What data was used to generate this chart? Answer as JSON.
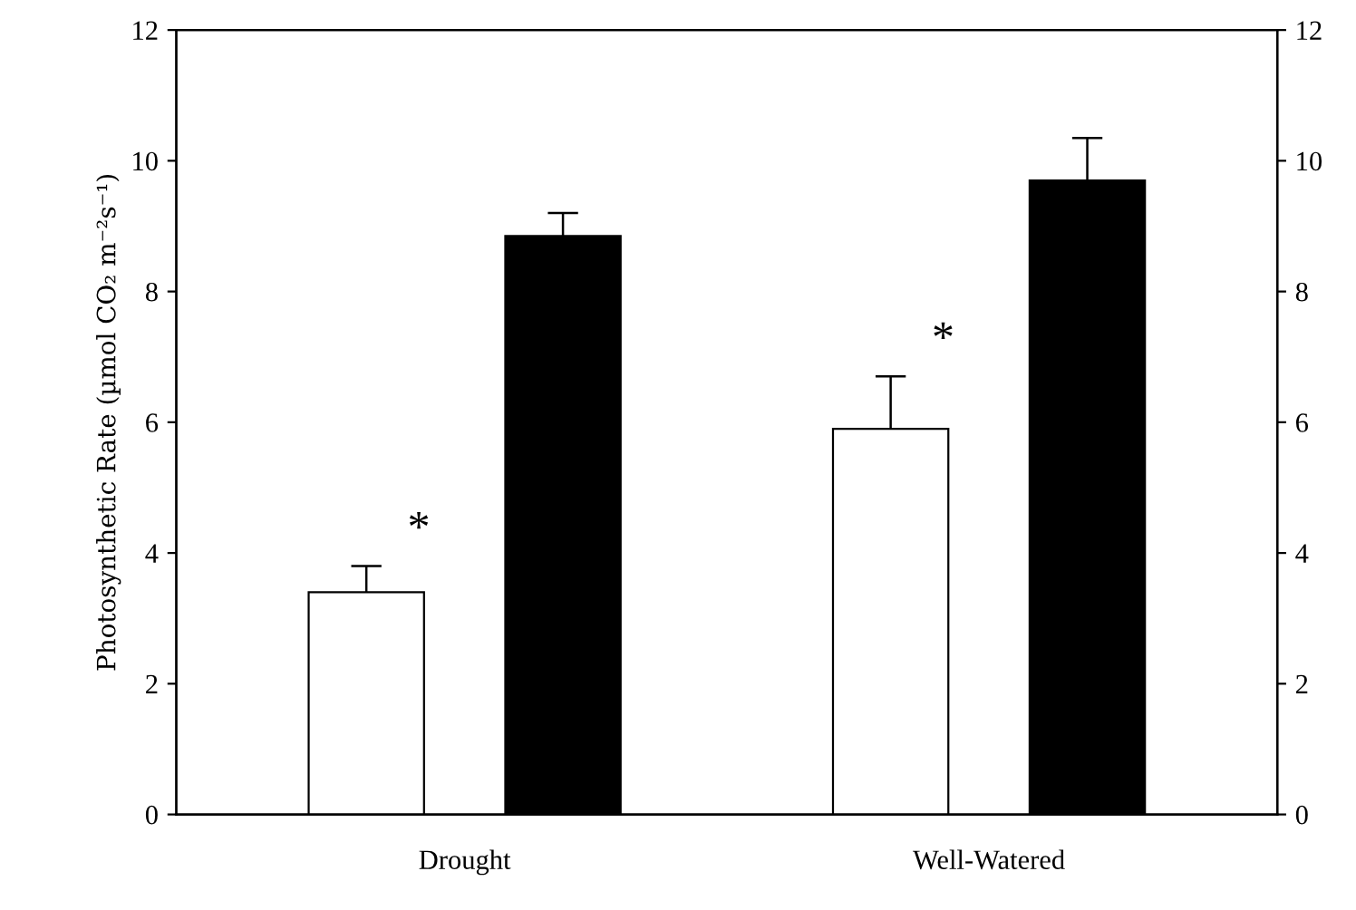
{
  "chart_data": {
    "type": "bar",
    "ylabel": "Photosynthetic Rate (µmol CO₂ m⁻²s⁻¹)",
    "categories": [
      "Drought",
      "Well-Watered"
    ],
    "series": [
      {
        "color": "#ffffff",
        "values": [
          3.4,
          5.9
        ],
        "errors": [
          0.4,
          0.8
        ]
      },
      {
        "color": "#000000",
        "values": [
          8.85,
          9.7
        ],
        "errors": [
          0.35,
          0.65
        ]
      }
    ],
    "ylim": [
      0,
      12
    ],
    "yticks": [
      0,
      2,
      4,
      6,
      8,
      10,
      12
    ],
    "y2lim": [
      0,
      12
    ],
    "y2ticks": [
      0,
      2,
      4,
      6,
      8,
      10,
      12
    ],
    "annotations": [
      "*",
      "*"
    ],
    "grid": false,
    "legend": false
  }
}
